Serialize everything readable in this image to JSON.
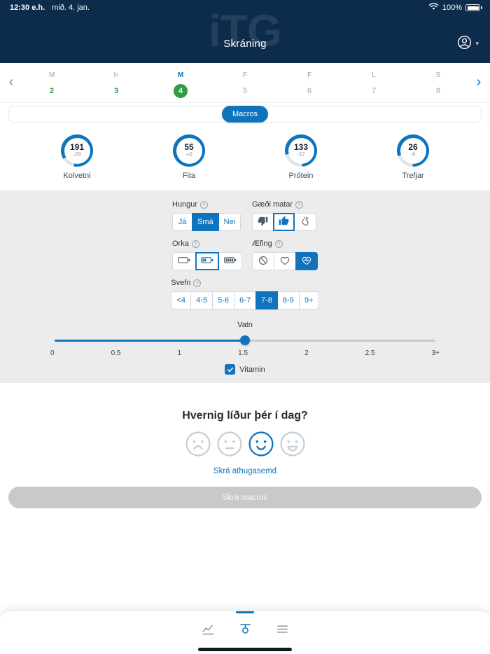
{
  "theme": {
    "accent": "#0f74bd",
    "navy": "#0d2b4b",
    "green": "#2e9c44",
    "gray_bg": "#ececec",
    "disabled": "#c7c9cb"
  },
  "status_bar": {
    "time": "12:30 e.h.",
    "date": "mið. 4. jan.",
    "battery_percent": "100%"
  },
  "header": {
    "title": "Skráning",
    "watermark": "iTG"
  },
  "week": {
    "days": [
      {
        "letter": "M",
        "date": "2",
        "state": "logged"
      },
      {
        "letter": "Þ",
        "date": "3",
        "state": "logged"
      },
      {
        "letter": "M",
        "date": "4",
        "state": "selected"
      },
      {
        "letter": "F",
        "date": "5",
        "state": "upcoming"
      },
      {
        "letter": "F",
        "date": "6",
        "state": "upcoming"
      },
      {
        "letter": "L",
        "date": "7",
        "state": "upcoming"
      },
      {
        "letter": "S",
        "date": "8",
        "state": "upcoming"
      }
    ]
  },
  "macros": {
    "pill_label": "Macros"
  },
  "rings": [
    {
      "label": "Kolvetni",
      "value": "191",
      "delta": "-29",
      "progress": 0.87
    },
    {
      "label": "Fita",
      "value": "55",
      "delta": "+0",
      "progress": 1
    },
    {
      "label": "Prótein",
      "value": "133",
      "delta": "-37",
      "progress": 0.78
    },
    {
      "label": "Trefjar",
      "value": "26",
      "delta": "-6",
      "progress": 0.81
    }
  ],
  "form": {
    "hungur": {
      "label": "Hungur",
      "options": [
        "Já",
        "Smá",
        "Nei"
      ],
      "selected": "Smá"
    },
    "gaedi_matar": {
      "label": "Gæði matar",
      "options": [
        "thumbs-down",
        "thumbs-up",
        "applause"
      ],
      "selected": "thumbs-up"
    },
    "orka": {
      "label": "Orka",
      "options": [
        "battery-low",
        "battery-medium",
        "battery-full"
      ],
      "selected": "battery-medium"
    },
    "aefing": {
      "label": "Æfing",
      "options": [
        "no-exercise",
        "light-exercise",
        "intense-exercise"
      ],
      "selected": "intense-exercise"
    },
    "svefn": {
      "label": "Svefn",
      "options": [
        "<4",
        "4-5",
        "5-6",
        "6-7",
        "7-8",
        "8-9",
        "9+"
      ],
      "selected": "7-8"
    },
    "vatn": {
      "label": "Vatn",
      "ticks": [
        "0",
        "0.5",
        "1",
        "1.5",
        "2",
        "2.5",
        "3+"
      ],
      "value": 1.5,
      "max": 3
    },
    "vitamin": {
      "label": "Vitamin",
      "checked": true
    }
  },
  "mood": {
    "question": "Hvernig líður þér í dag?",
    "faces": [
      "sad",
      "neutral",
      "happy",
      "very-happy"
    ],
    "selected": "happy"
  },
  "comment_link": "Skrá athugasemd",
  "submit_button": {
    "label": "Skrá macros",
    "enabled": false
  },
  "bottom_nav": {
    "tabs": [
      "stats",
      "log",
      "menu"
    ],
    "active": "log"
  }
}
